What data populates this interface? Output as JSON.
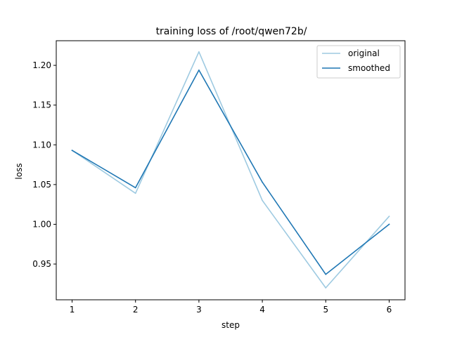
{
  "chart_data": {
    "type": "line",
    "title": "training loss of /root/qwen72b/",
    "xlabel": "step",
    "ylabel": "loss",
    "x": [
      1,
      2,
      3,
      4,
      5,
      6
    ],
    "xticks": [
      "1",
      "2",
      "3",
      "4",
      "5",
      "6"
    ],
    "yticks": [
      "0.95",
      "1.00",
      "1.05",
      "1.10",
      "1.15",
      "1.20"
    ],
    "ytick_values": [
      0.95,
      1.0,
      1.05,
      1.1,
      1.15,
      1.2
    ],
    "xlim": [
      0.75,
      6.25
    ],
    "ylim": [
      0.905,
      1.231
    ],
    "grid": false,
    "legend_position": "top-right",
    "series": [
      {
        "name": "original",
        "color": "#9ecae1",
        "values": [
          1.093,
          1.039,
          1.217,
          1.03,
          0.92,
          1.01
        ]
      },
      {
        "name": "smoothed",
        "color": "#1f77b4",
        "values": [
          1.093,
          1.046,
          1.194,
          1.053,
          0.937,
          1.0
        ]
      }
    ]
  }
}
